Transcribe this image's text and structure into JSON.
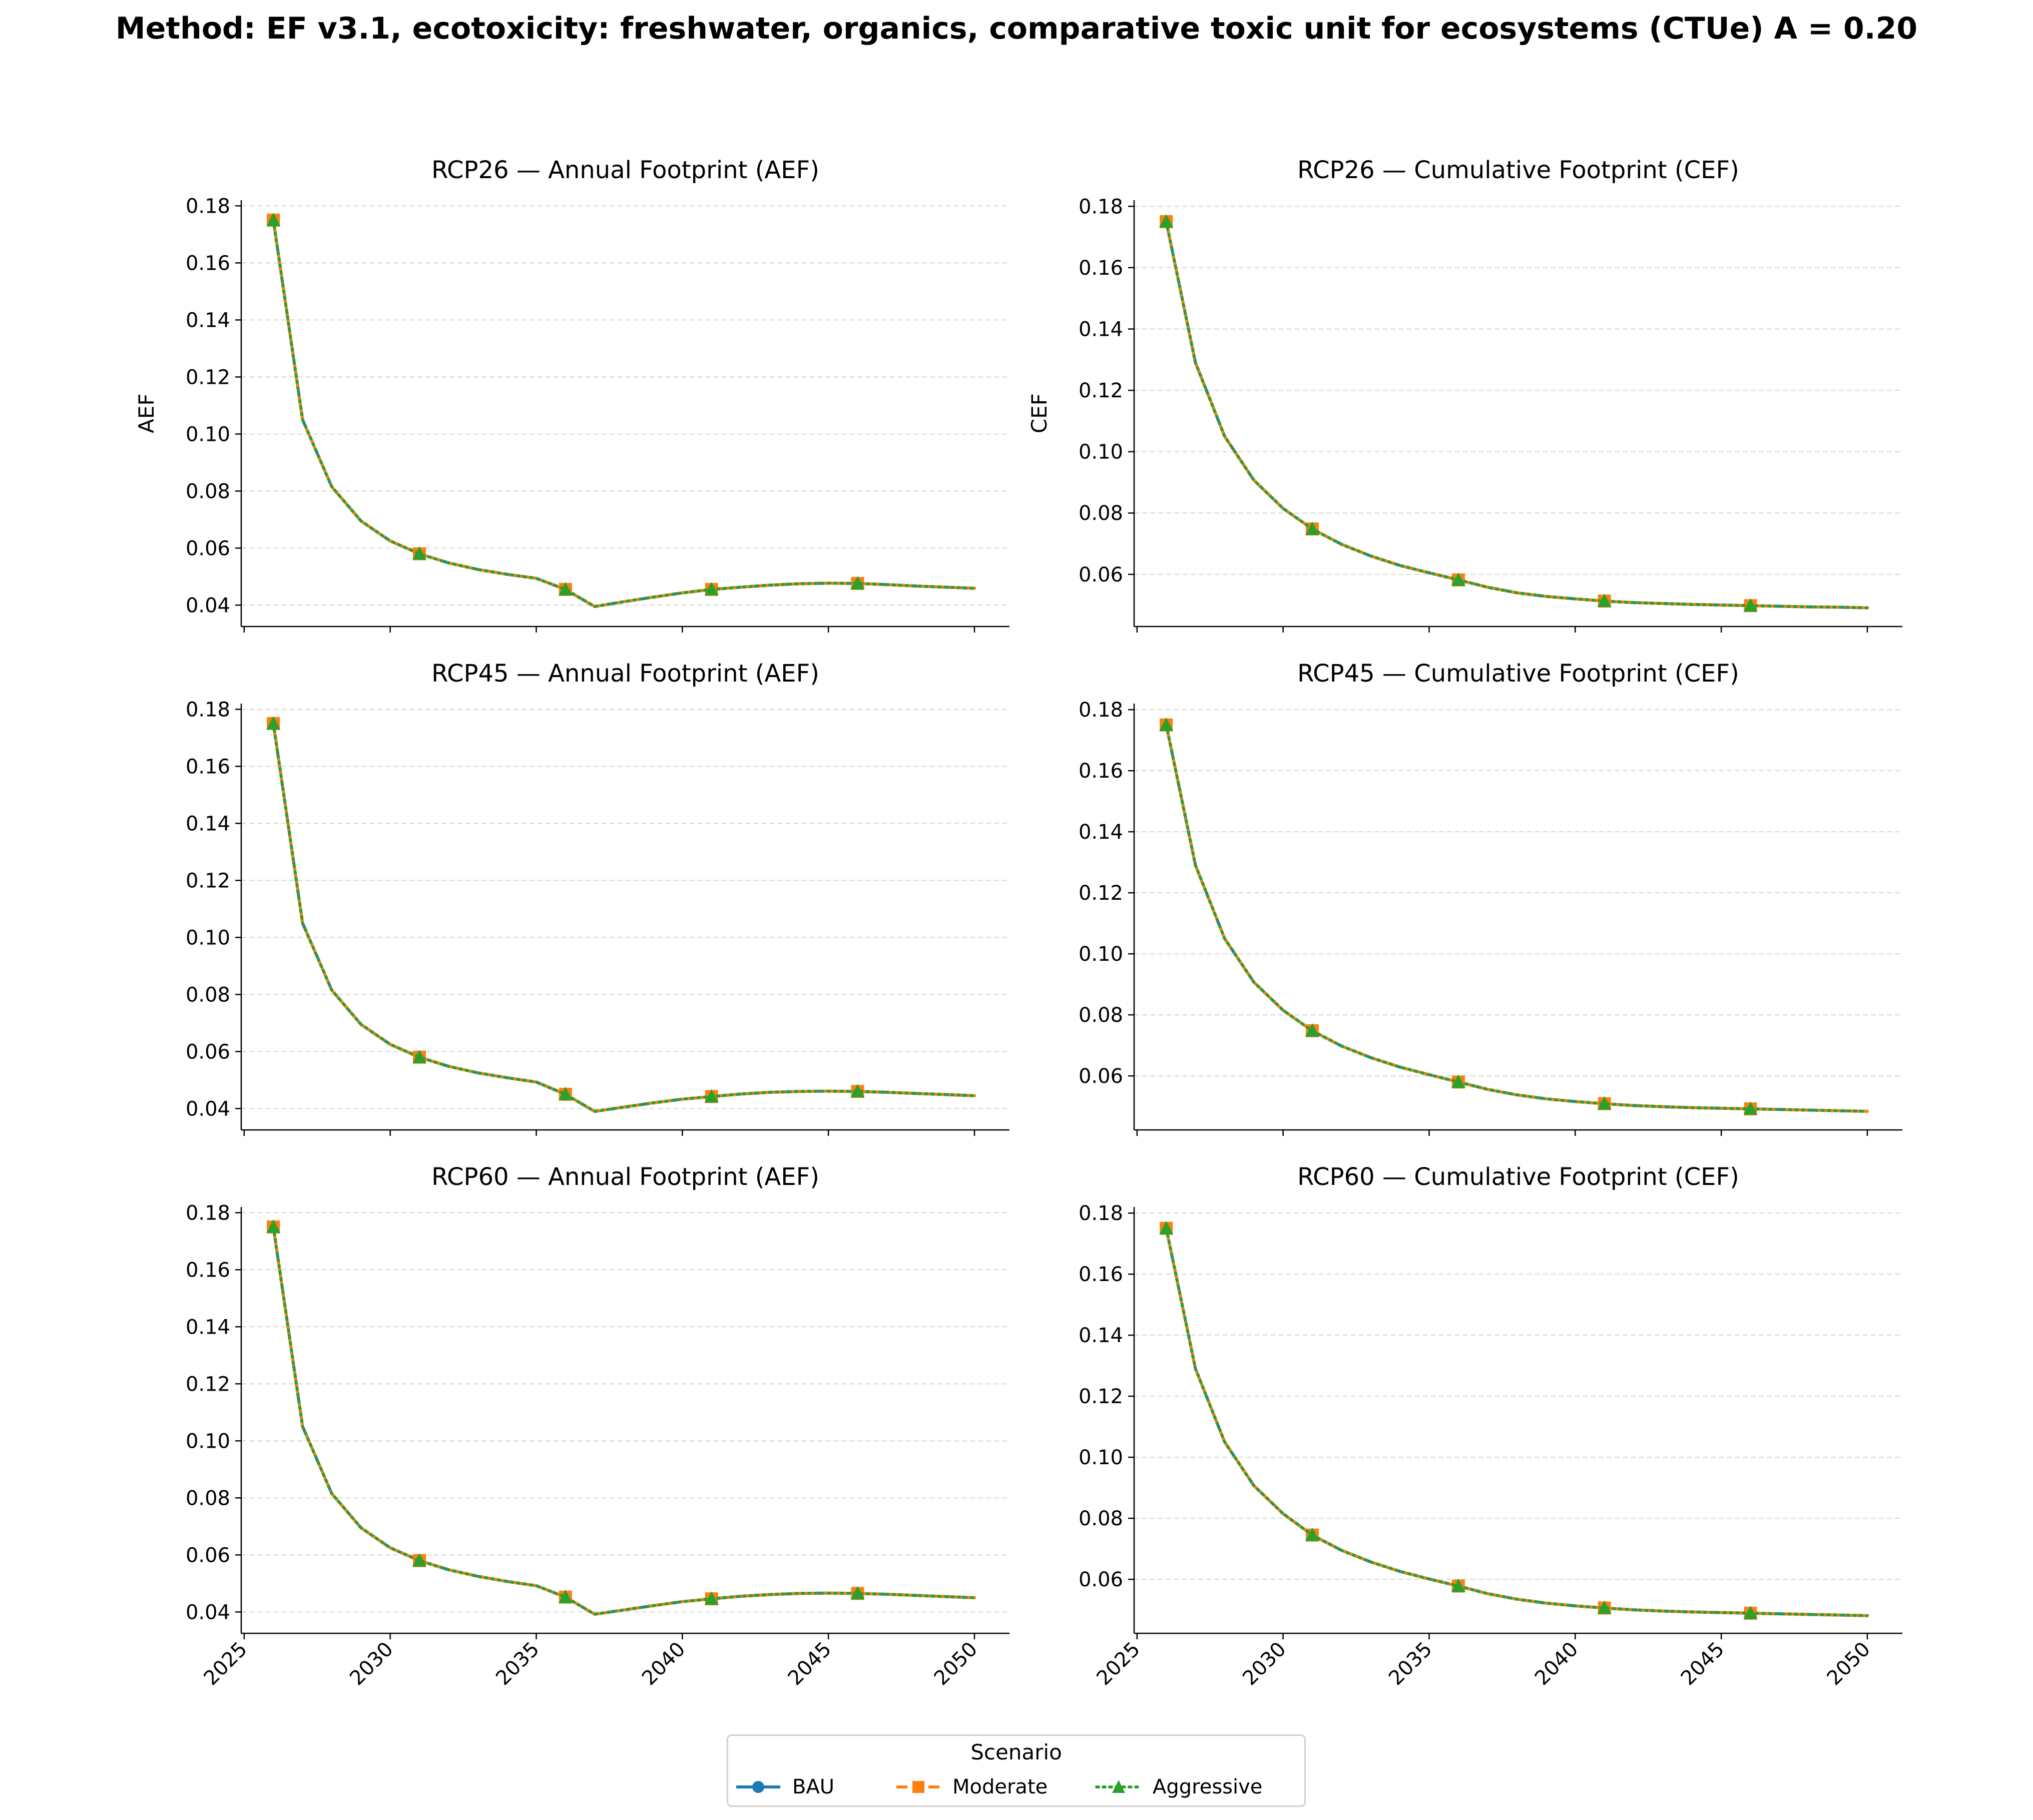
{
  "suptitle": "Method: EF v3.1, ecotoxicity: freshwater, organics, comparative toxic unit for ecosystems (CTUe) A = 0.20",
  "legend": {
    "title": "Scenario",
    "entries": [
      {
        "label": "BAU",
        "color": "#1f77b4",
        "marker": "circle",
        "linestyle": "solid"
      },
      {
        "label": "Moderate",
        "color": "#ff7f0e",
        "marker": "square",
        "linestyle": "dashed"
      },
      {
        "label": "Aggressive",
        "color": "#2ca02c",
        "marker": "triangle",
        "linestyle": "dotted"
      }
    ]
  },
  "chart_data": [
    {
      "type": "line",
      "title": "RCP26 — Annual Footprint (AEF)",
      "ylabel": "AEF",
      "xlim": [
        2024.9,
        2051.2
      ],
      "ylim": [
        0.0325,
        0.182
      ],
      "yticks": [
        "0.04",
        "0.06",
        "0.08",
        "0.10",
        "0.12",
        "0.14",
        "0.16",
        "0.18"
      ],
      "xticks": [
        "2025",
        "2030",
        "2035",
        "2040",
        "2045",
        "2050"
      ],
      "show_xticklabels": false,
      "grid": "y",
      "x": [
        2026,
        2027,
        2028,
        2029,
        2030,
        2031,
        2032,
        2033,
        2034,
        2035,
        2036,
        2037,
        2038,
        2039,
        2040,
        2041,
        2042,
        2043,
        2044,
        2045,
        2046,
        2047,
        2048,
        2049,
        2050
      ],
      "marker_x": [
        2026,
        2031,
        2036,
        2041,
        2046
      ],
      "series": [
        {
          "name": "BAU",
          "values": [
            0.175,
            0.105,
            0.0815,
            0.0695,
            0.0625,
            0.058,
            0.0548,
            0.0525,
            0.0508,
            0.0494,
            0.0455,
            0.0395,
            0.0412,
            0.0428,
            0.0443,
            0.0455,
            0.0463,
            0.047,
            0.0475,
            0.0477,
            0.0476,
            0.0472,
            0.0467,
            0.0463,
            0.0459
          ]
        },
        {
          "name": "Moderate",
          "values": [
            0.175,
            0.105,
            0.0815,
            0.0695,
            0.0625,
            0.058,
            0.0548,
            0.0525,
            0.0508,
            0.0494,
            0.0455,
            0.0395,
            0.0412,
            0.0428,
            0.0443,
            0.0455,
            0.0463,
            0.047,
            0.0475,
            0.0477,
            0.0476,
            0.0472,
            0.0467,
            0.0463,
            0.0459
          ]
        },
        {
          "name": "Aggressive",
          "values": [
            0.175,
            0.105,
            0.0815,
            0.0695,
            0.0625,
            0.058,
            0.0548,
            0.0525,
            0.0508,
            0.0494,
            0.0455,
            0.0395,
            0.0412,
            0.0428,
            0.0443,
            0.0455,
            0.0463,
            0.047,
            0.0475,
            0.0477,
            0.0476,
            0.0472,
            0.0467,
            0.0463,
            0.0459
          ]
        }
      ]
    },
    {
      "type": "line",
      "title": "RCP26 — Cumulative Footprint (CEF)",
      "ylabel": "CEF",
      "xlim": [
        2024.9,
        2051.2
      ],
      "ylim": [
        0.043,
        0.182
      ],
      "yticks": [
        "0.06",
        "0.08",
        "0.10",
        "0.12",
        "0.14",
        "0.16",
        "0.18"
      ],
      "xticks": [
        "2025",
        "2030",
        "2035",
        "2040",
        "2045",
        "2050"
      ],
      "show_xticklabels": false,
      "grid": "y",
      "x": [
        2026,
        2027,
        2028,
        2029,
        2030,
        2031,
        2032,
        2033,
        2034,
        2035,
        2036,
        2037,
        2038,
        2039,
        2040,
        2041,
        2042,
        2043,
        2044,
        2045,
        2046,
        2047,
        2048,
        2049,
        2050
      ],
      "marker_x": [
        2026,
        2031,
        2036,
        2041,
        2046
      ],
      "series": [
        {
          "name": "BAU",
          "values": [
            0.175,
            0.129,
            0.105,
            0.0907,
            0.0815,
            0.0748,
            0.0698,
            0.066,
            0.0629,
            0.0605,
            0.0582,
            0.0558,
            0.054,
            0.0528,
            0.052,
            0.0513,
            0.0508,
            0.0505,
            0.0502,
            0.05,
            0.0498,
            0.0496,
            0.0494,
            0.0493,
            0.0491
          ]
        },
        {
          "name": "Moderate",
          "values": [
            0.175,
            0.129,
            0.105,
            0.0907,
            0.0815,
            0.0748,
            0.0698,
            0.066,
            0.0629,
            0.0605,
            0.0582,
            0.0558,
            0.054,
            0.0528,
            0.052,
            0.0513,
            0.0508,
            0.0505,
            0.0502,
            0.05,
            0.0498,
            0.0496,
            0.0494,
            0.0493,
            0.0491
          ]
        },
        {
          "name": "Aggressive",
          "values": [
            0.175,
            0.129,
            0.105,
            0.0907,
            0.0815,
            0.0748,
            0.0698,
            0.066,
            0.0629,
            0.0605,
            0.0582,
            0.0558,
            0.054,
            0.0528,
            0.052,
            0.0513,
            0.0508,
            0.0505,
            0.0502,
            0.05,
            0.0498,
            0.0496,
            0.0494,
            0.0493,
            0.0491
          ]
        }
      ]
    },
    {
      "type": "line",
      "title": "RCP45 — Annual Footprint (AEF)",
      "ylabel": "",
      "xlim": [
        2024.9,
        2051.2
      ],
      "ylim": [
        0.0325,
        0.182
      ],
      "yticks": [
        "0.04",
        "0.06",
        "0.08",
        "0.10",
        "0.12",
        "0.14",
        "0.16",
        "0.18"
      ],
      "xticks": [
        "2025",
        "2030",
        "2035",
        "2040",
        "2045",
        "2050"
      ],
      "show_xticklabels": false,
      "grid": "y",
      "x": [
        2026,
        2027,
        2028,
        2029,
        2030,
        2031,
        2032,
        2033,
        2034,
        2035,
        2036,
        2037,
        2038,
        2039,
        2040,
        2041,
        2042,
        2043,
        2044,
        2045,
        2046,
        2047,
        2048,
        2049,
        2050
      ],
      "marker_x": [
        2026,
        2031,
        2036,
        2041,
        2046
      ],
      "series": [
        {
          "name": "BAU",
          "values": [
            0.175,
            0.105,
            0.0815,
            0.0695,
            0.0625,
            0.058,
            0.0548,
            0.0525,
            0.0508,
            0.0493,
            0.045,
            0.039,
            0.0405,
            0.042,
            0.0433,
            0.0442,
            0.0451,
            0.0457,
            0.046,
            0.0461,
            0.046,
            0.0457,
            0.0453,
            0.0449,
            0.0445
          ]
        },
        {
          "name": "Moderate",
          "values": [
            0.175,
            0.105,
            0.0815,
            0.0695,
            0.0625,
            0.058,
            0.0548,
            0.0525,
            0.0508,
            0.0493,
            0.045,
            0.039,
            0.0405,
            0.042,
            0.0433,
            0.0442,
            0.0451,
            0.0457,
            0.046,
            0.0461,
            0.046,
            0.0457,
            0.0453,
            0.0449,
            0.0445
          ]
        },
        {
          "name": "Aggressive",
          "values": [
            0.175,
            0.105,
            0.0815,
            0.0695,
            0.0625,
            0.058,
            0.0548,
            0.0525,
            0.0508,
            0.0493,
            0.045,
            0.039,
            0.0405,
            0.042,
            0.0433,
            0.0442,
            0.0451,
            0.0457,
            0.046,
            0.0461,
            0.046,
            0.0457,
            0.0453,
            0.0449,
            0.0445
          ]
        }
      ]
    },
    {
      "type": "line",
      "title": "RCP45 — Cumulative Footprint (CEF)",
      "ylabel": "",
      "xlim": [
        2024.9,
        2051.2
      ],
      "ylim": [
        0.0423,
        0.182
      ],
      "yticks": [
        "0.06",
        "0.08",
        "0.10",
        "0.12",
        "0.14",
        "0.16",
        "0.18"
      ],
      "xticks": [
        "2025",
        "2030",
        "2035",
        "2040",
        "2045",
        "2050"
      ],
      "show_xticklabels": false,
      "grid": "y",
      "x": [
        2026,
        2027,
        2028,
        2029,
        2030,
        2031,
        2032,
        2033,
        2034,
        2035,
        2036,
        2037,
        2038,
        2039,
        2040,
        2041,
        2042,
        2043,
        2044,
        2045,
        2046,
        2047,
        2048,
        2049,
        2050
      ],
      "marker_x": [
        2026,
        2031,
        2036,
        2041,
        2046
      ],
      "series": [
        {
          "name": "BAU",
          "values": [
            0.175,
            0.129,
            0.105,
            0.0907,
            0.0815,
            0.0748,
            0.0698,
            0.066,
            0.0629,
            0.0604,
            0.058,
            0.0556,
            0.0538,
            0.0525,
            0.0516,
            0.0509,
            0.0503,
            0.0499,
            0.0496,
            0.0494,
            0.0492,
            0.049,
            0.0488,
            0.0486,
            0.0484
          ]
        },
        {
          "name": "Moderate",
          "values": [
            0.175,
            0.129,
            0.105,
            0.0907,
            0.0815,
            0.0748,
            0.0698,
            0.066,
            0.0629,
            0.0604,
            0.058,
            0.0556,
            0.0538,
            0.0525,
            0.0516,
            0.0509,
            0.0503,
            0.0499,
            0.0496,
            0.0494,
            0.0492,
            0.049,
            0.0488,
            0.0486,
            0.0484
          ]
        },
        {
          "name": "Aggressive",
          "values": [
            0.175,
            0.129,
            0.105,
            0.0907,
            0.0815,
            0.0748,
            0.0698,
            0.066,
            0.0629,
            0.0604,
            0.058,
            0.0556,
            0.0538,
            0.0525,
            0.0516,
            0.0509,
            0.0503,
            0.0499,
            0.0496,
            0.0494,
            0.0492,
            0.049,
            0.0488,
            0.0486,
            0.0484
          ]
        }
      ]
    },
    {
      "type": "line",
      "title": "RCP60 — Annual Footprint (AEF)",
      "ylabel": "",
      "xlim": [
        2024.9,
        2051.2
      ],
      "ylim": [
        0.0325,
        0.182
      ],
      "yticks": [
        "0.04",
        "0.06",
        "0.08",
        "0.10",
        "0.12",
        "0.14",
        "0.16",
        "0.18"
      ],
      "xticks": [
        "2025",
        "2030",
        "2035",
        "2040",
        "2045",
        "2050"
      ],
      "show_xticklabels": true,
      "grid": "y",
      "x": [
        2026,
        2027,
        2028,
        2029,
        2030,
        2031,
        2032,
        2033,
        2034,
        2035,
        2036,
        2037,
        2038,
        2039,
        2040,
        2041,
        2042,
        2043,
        2044,
        2045,
        2046,
        2047,
        2048,
        2049,
        2050
      ],
      "marker_x": [
        2026,
        2031,
        2036,
        2041,
        2046
      ],
      "series": [
        {
          "name": "BAU",
          "values": [
            0.175,
            0.105,
            0.0815,
            0.0695,
            0.0625,
            0.058,
            0.0548,
            0.0525,
            0.0507,
            0.0492,
            0.0452,
            0.0392,
            0.0407,
            0.0422,
            0.0436,
            0.0446,
            0.0455,
            0.0461,
            0.0465,
            0.0466,
            0.0465,
            0.0462,
            0.0458,
            0.0454,
            0.045
          ]
        },
        {
          "name": "Moderate",
          "values": [
            0.175,
            0.105,
            0.0815,
            0.0695,
            0.0625,
            0.058,
            0.0548,
            0.0525,
            0.0507,
            0.0492,
            0.0452,
            0.0392,
            0.0407,
            0.0422,
            0.0436,
            0.0446,
            0.0455,
            0.0461,
            0.0465,
            0.0466,
            0.0465,
            0.0462,
            0.0458,
            0.0454,
            0.045
          ]
        },
        {
          "name": "Aggressive",
          "values": [
            0.175,
            0.105,
            0.0815,
            0.0695,
            0.0625,
            0.058,
            0.0548,
            0.0525,
            0.0507,
            0.0492,
            0.0452,
            0.0392,
            0.0407,
            0.0422,
            0.0436,
            0.0446,
            0.0455,
            0.0461,
            0.0465,
            0.0466,
            0.0465,
            0.0462,
            0.0458,
            0.0454,
            0.045
          ]
        }
      ]
    },
    {
      "type": "line",
      "title": "RCP60 — Cumulative Footprint (CEF)",
      "ylabel": "",
      "xlim": [
        2024.9,
        2051.2
      ],
      "ylim": [
        0.0423,
        0.182
      ],
      "yticks": [
        "0.06",
        "0.08",
        "0.10",
        "0.12",
        "0.14",
        "0.16",
        "0.18"
      ],
      "xticks": [
        "2025",
        "2030",
        "2035",
        "2040",
        "2045",
        "2050"
      ],
      "show_xticklabels": true,
      "grid": "y",
      "x": [
        2026,
        2027,
        2028,
        2029,
        2030,
        2031,
        2032,
        2033,
        2034,
        2035,
        2036,
        2037,
        2038,
        2039,
        2040,
        2041,
        2042,
        2043,
        2044,
        2045,
        2046,
        2047,
        2048,
        2049,
        2050
      ],
      "marker_x": [
        2026,
        2031,
        2036,
        2041,
        2046
      ],
      "series": [
        {
          "name": "BAU",
          "values": [
            0.175,
            0.129,
            0.105,
            0.0907,
            0.0815,
            0.0745,
            0.0695,
            0.0657,
            0.0626,
            0.0601,
            0.0578,
            0.0553,
            0.0535,
            0.0522,
            0.0513,
            0.0506,
            0.05,
            0.0496,
            0.0493,
            0.0491,
            0.0489,
            0.0487,
            0.0485,
            0.0483,
            0.0481
          ]
        },
        {
          "name": "Moderate",
          "values": [
            0.175,
            0.129,
            0.105,
            0.0907,
            0.0815,
            0.0745,
            0.0695,
            0.0657,
            0.0626,
            0.0601,
            0.0578,
            0.0553,
            0.0535,
            0.0522,
            0.0513,
            0.0506,
            0.05,
            0.0496,
            0.0493,
            0.0491,
            0.0489,
            0.0487,
            0.0485,
            0.0483,
            0.0481
          ]
        },
        {
          "name": "Aggressive",
          "values": [
            0.175,
            0.129,
            0.105,
            0.0907,
            0.0815,
            0.0745,
            0.0695,
            0.0657,
            0.0626,
            0.0601,
            0.0578,
            0.0553,
            0.0535,
            0.0522,
            0.0513,
            0.0506,
            0.05,
            0.0496,
            0.0493,
            0.0491,
            0.0489,
            0.0487,
            0.0485,
            0.0483,
            0.0481
          ]
        }
      ]
    }
  ]
}
